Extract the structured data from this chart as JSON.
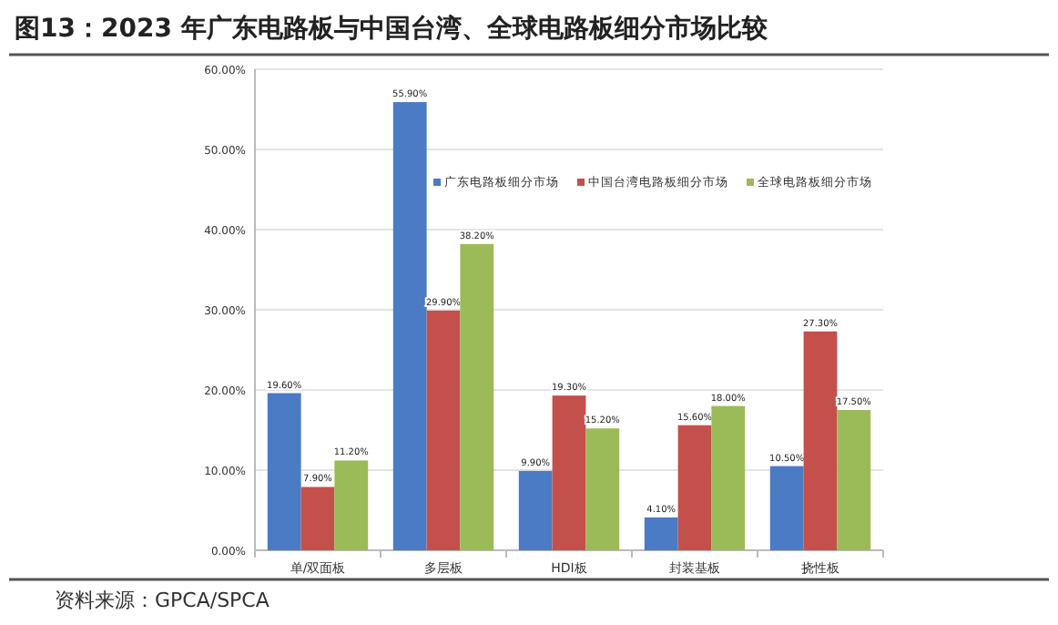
{
  "chart_data": {
    "type": "bar",
    "title": "图13：2023 年广东电路板与中国台湾、全球电路板细分市场比较",
    "categories": [
      "单/双面板",
      "多层板",
      "HDI板",
      "封装基板",
      "挠性板"
    ],
    "series": [
      {
        "name": "广东电路板细分市场",
        "color": "#4a7bc4",
        "values": [
          19.6,
          55.9,
          9.9,
          4.1,
          10.5
        ],
        "value_labels": [
          "19.60%",
          "55.90%",
          "9.90%",
          "4.10%",
          "10.50%"
        ]
      },
      {
        "name": "中国台湾电路板细分市场",
        "color": "#c4504c",
        "values": [
          7.9,
          29.9,
          19.3,
          15.6,
          27.3
        ],
        "value_labels": [
          "7.90%",
          "29.90%",
          "19.30%",
          "15.60%",
          "27.30%"
        ]
      },
      {
        "name": "全球电路板细分市场",
        "color": "#9bbb59",
        "values": [
          11.2,
          38.2,
          15.2,
          18.0,
          17.5
        ],
        "value_labels": [
          "11.20%",
          "38.20%",
          "15.20%",
          "18.00%",
          "17.50%"
        ]
      }
    ],
    "ylim": [
      0,
      60
    ],
    "yticks": [
      {
        "value": 0,
        "label": "0.00%"
      },
      {
        "value": 10,
        "label": "10.00%"
      },
      {
        "value": 20,
        "label": "20.00%"
      },
      {
        "value": 30,
        "label": "30.00%"
      },
      {
        "value": 40,
        "label": "40.00%"
      },
      {
        "value": 50,
        "label": "50.00%"
      },
      {
        "value": 60,
        "label": "60.00%"
      }
    ],
    "grid": "y",
    "legend": "top right",
    "annotations": [
      "资料来源：GPCA/SPCA"
    ]
  }
}
